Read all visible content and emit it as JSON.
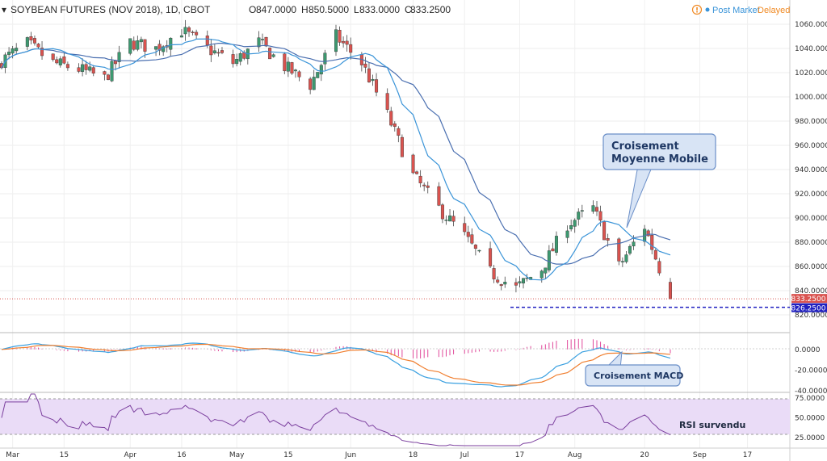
{
  "header": {
    "symbol": "SOYBEAN FUTURES (NOV 2018), 1D, CBOT",
    "ohlc": [
      {
        "key": "O",
        "value": "847.0000"
      },
      {
        "key": "H",
        "value": "850.5000"
      },
      {
        "key": "L",
        "value": "833.0000"
      },
      {
        "key": "C",
        "value": "833.2500"
      }
    ],
    "status": "Post Market",
    "delayed": "Delayed",
    "info_glyph": "!"
  },
  "colors": {
    "up": "#3d9970",
    "down": "#d9534f",
    "ma_fast": "#3a94d8",
    "ma_slow": "#4a6fb0",
    "macd": "#3aa0e0",
    "signal": "#f07f30",
    "hist": "#e0489a",
    "rsi": "#7b3f9e",
    "rsi_band": "#eadcf7",
    "last_price": "#d9534f",
    "support": "#2020c0"
  },
  "chart_data": [
    {
      "type": "candlestick",
      "title": "SOYBEAN FUTURES (NOV 2018), 1D, CBOT",
      "ylim": [
        812,
        1068
      ],
      "y_ticks": [
        "1060.0000",
        "1040.0000",
        "1020.0000",
        "1000.0000",
        "980.0000",
        "960.0000",
        "940.0000",
        "920.0000",
        "900.0000",
        "880.0000",
        "860.0000",
        "840.0000",
        "820.0000"
      ],
      "x_tick_labels": [
        "Mar",
        "15",
        "Apr",
        "16",
        "May",
        "15",
        "Jun",
        "18",
        "Jul",
        "17",
        "Aug",
        "20",
        "Sep",
        "17"
      ],
      "last_price": {
        "label": "833.2500",
        "value": 833.25
      },
      "support_level": {
        "label": "826.2500",
        "value": 826.25
      },
      "ohlc_waypoints": [
        {
          "date": "2018-02-26",
          "close": 1030
        },
        {
          "date": "2018-03-05",
          "close": 1044
        },
        {
          "date": "2018-03-12",
          "close": 1028
        },
        {
          "date": "2018-03-19",
          "close": 1023
        },
        {
          "date": "2018-03-26",
          "close": 1015
        },
        {
          "date": "2018-04-02",
          "close": 1045
        },
        {
          "date": "2018-04-09",
          "close": 1040
        },
        {
          "date": "2018-04-16",
          "close": 1055
        },
        {
          "date": "2018-04-23",
          "close": 1040
        },
        {
          "date": "2018-04-30",
          "close": 1028
        },
        {
          "date": "2018-05-07",
          "close": 1045
        },
        {
          "date": "2018-05-14",
          "close": 1025
        },
        {
          "date": "2018-05-21",
          "close": 1010
        },
        {
          "date": "2018-05-28",
          "close": 1050
        },
        {
          "date": "2018-06-04",
          "close": 1028
        },
        {
          "date": "2018-06-11",
          "close": 985
        },
        {
          "date": "2018-06-18",
          "close": 935
        },
        {
          "date": "2018-06-25",
          "close": 908
        },
        {
          "date": "2018-07-02",
          "close": 885
        },
        {
          "date": "2018-07-09",
          "close": 855
        },
        {
          "date": "2018-07-16",
          "close": 842
        },
        {
          "date": "2018-07-23",
          "close": 858
        },
        {
          "date": "2018-07-30",
          "close": 895
        },
        {
          "date": "2018-08-06",
          "close": 908
        },
        {
          "date": "2018-08-13",
          "close": 860
        },
        {
          "date": "2018-08-20",
          "close": 893
        },
        {
          "date": "2018-08-27",
          "close": 833
        }
      ],
      "indicators": [
        "moving average (fast)",
        "moving average (slow)"
      ],
      "annotations": [
        {
          "text_lines": [
            "Croisement",
            "Moyenne Mobile"
          ]
        }
      ]
    },
    {
      "type": "line",
      "panel": "MACD",
      "ylim": [
        -40,
        10
      ],
      "y_ticks": [
        "0.0000",
        "-20.0000",
        "-40.0000"
      ],
      "series": [
        {
          "values_kind": "macd"
        },
        {
          "values_kind": "signal"
        },
        {
          "values_kind": "histogram"
        }
      ],
      "annotations": [
        {
          "text": "Croisement MACD"
        }
      ]
    },
    {
      "type": "line",
      "panel": "RSI",
      "ylim": [
        15,
        80
      ],
      "y_ticks": [
        "75.0000",
        "50.0000",
        "25.0000"
      ],
      "band": [
        30,
        70
      ],
      "annotations": [
        {
          "text": "RSI survendu"
        }
      ]
    }
  ]
}
